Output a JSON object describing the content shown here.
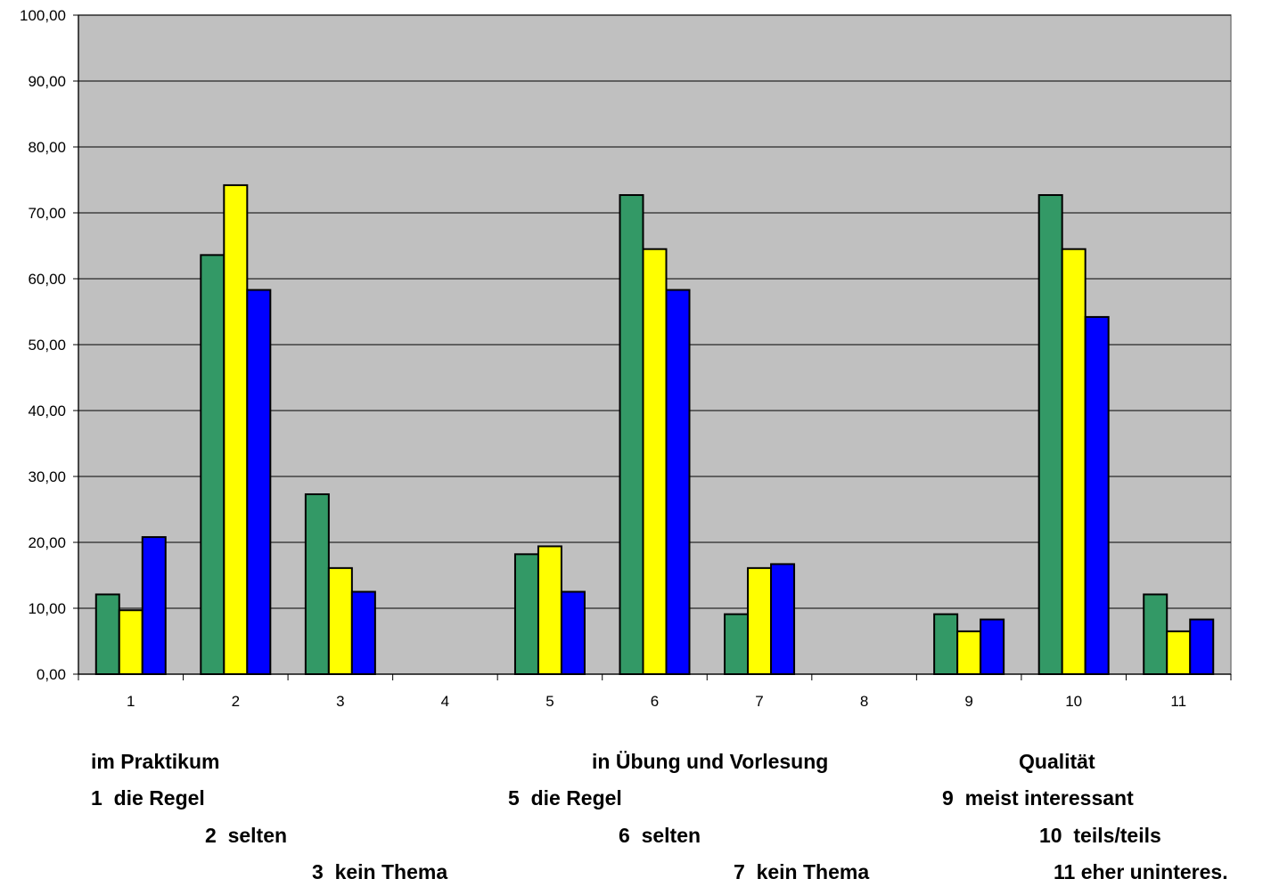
{
  "chart_data": {
    "type": "bar",
    "categories": [
      "1",
      "2",
      "3",
      "4",
      "5",
      "6",
      "7",
      "8",
      "9",
      "10",
      "11"
    ],
    "series": [
      {
        "color": "#339966",
        "values": [
          12.1,
          63.6,
          27.3,
          0,
          18.2,
          72.7,
          9.1,
          0,
          9.1,
          72.7,
          12.1
        ]
      },
      {
        "color": "#FFFF00",
        "values": [
          9.7,
          74.2,
          16.1,
          0,
          19.4,
          64.5,
          16.1,
          0,
          6.5,
          64.5,
          6.5
        ]
      },
      {
        "color": "#0000FF",
        "values": [
          20.8,
          58.3,
          12.5,
          0,
          12.5,
          58.3,
          16.7,
          0,
          8.3,
          54.2,
          8.3
        ]
      }
    ],
    "ylim": [
      0,
      100
    ],
    "yticks": [
      "0,00",
      "10,00",
      "20,00",
      "30,00",
      "40,00",
      "50,00",
      "60,00",
      "70,00",
      "80,00",
      "90,00",
      "100,00"
    ],
    "plot_background": "#C0C0C0",
    "grid": true
  },
  "legend": {
    "group1": {
      "title": "im Praktikum",
      "items": [
        "1  die Regel",
        "2  selten",
        "3  kein Thema"
      ]
    },
    "group2": {
      "title": "in Übung und Vorlesung",
      "items": [
        "5  die Regel",
        "6  selten",
        "7  kein Thema"
      ]
    },
    "group3": {
      "title": "Qualität",
      "items": [
        "9  meist interessant",
        "10  teils/teils",
        "11 eher uninteres."
      ]
    }
  }
}
